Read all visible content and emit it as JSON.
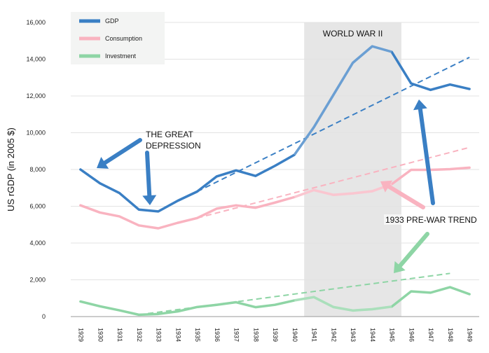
{
  "chart_data": {
    "type": "line",
    "ylabel": "US rGDP (in 2005 $)",
    "xlabel": "",
    "ylim": [
      0,
      16000
    ],
    "yticks": [
      0,
      2000,
      4000,
      6000,
      8000,
      10000,
      12000,
      14000,
      16000
    ],
    "ytick_labels": [
      "0",
      "2,000",
      "4,000",
      "6,000",
      "8,000",
      "10,000",
      "12,000",
      "14,000",
      "16,000"
    ],
    "x": [
      "1929",
      "1930",
      "1931",
      "1932",
      "1933",
      "1934",
      "1935",
      "1936",
      "1937",
      "1938",
      "1939",
      "1940",
      "1941",
      "1942",
      "1943",
      "1944",
      "1945",
      "1946",
      "1947",
      "1948",
      "1949"
    ],
    "grid": "horizontal",
    "legend_position": "top-left",
    "series": [
      {
        "name": "GDP",
        "color": "#3a7fc4",
        "values": [
          8000,
          7250,
          6720,
          5820,
          5720,
          6300,
          6800,
          7620,
          7950,
          7650,
          8200,
          8800,
          10300,
          12050,
          13800,
          14700,
          14400,
          12680,
          12330,
          12620,
          12380
        ]
      },
      {
        "name": "Consumption",
        "color": "#f9b3c0",
        "values": [
          6050,
          5660,
          5450,
          4960,
          4800,
          5100,
          5360,
          5870,
          6050,
          5920,
          6200,
          6500,
          6880,
          6620,
          6700,
          6820,
          7200,
          7980,
          7980,
          8020,
          8100
        ]
      },
      {
        "name": "Investment",
        "color": "#8ed5a5",
        "values": [
          820,
          560,
          340,
          100,
          140,
          280,
          520,
          640,
          780,
          510,
          640,
          880,
          1060,
          520,
          330,
          400,
          540,
          1370,
          1300,
          1600,
          1220
        ]
      }
    ],
    "trend_lines": [
      {
        "color": "#3a7fc4",
        "x": [
          "1935",
          "1949"
        ],
        "values": [
          6800,
          14100
        ]
      },
      {
        "color": "#f9b3c0",
        "x": [
          "1935",
          "1949"
        ],
        "values": [
          5360,
          9200
        ]
      },
      {
        "color": "#8ed5a5",
        "x": [
          "1932",
          "1948"
        ],
        "values": [
          100,
          2350
        ]
      }
    ],
    "shaded_region": {
      "x_from": "1941",
      "x_to": "1945",
      "label": "WORLD WAR II",
      "color": "#e6e6e6"
    },
    "annotations": [
      {
        "text": "THE GREAT\nDEPRESSION"
      },
      {
        "text": "1933 PRE-WAR TREND"
      }
    ]
  }
}
